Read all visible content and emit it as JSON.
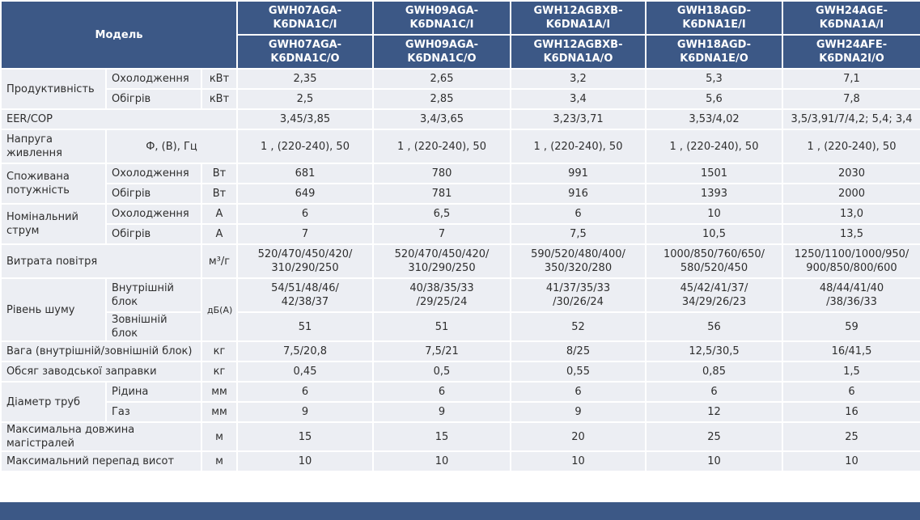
{
  "header": {
    "model_label": "Модель",
    "indoor_models": [
      "GWH07AGA-K6DNA1C/I",
      "GWH09AGA-K6DNA1C/I",
      "GWH12AGBXB-K6DNA1A/I",
      "GWH18AGD-K6DNA1E/I",
      "GWH24AGE-K6DNA1A/I"
    ],
    "outdoor_models": [
      "GWH07AGA-K6DNA1C/O",
      "GWH09AGA-K6DNA1C/O",
      "GWH12AGBXB-K6DNA1A/O",
      "GWH18AGD-K6DNA1E/O",
      "GWH24AFE-K6DNA2I/O"
    ]
  },
  "rows": [
    {
      "label": "Продуктивність",
      "subs": [
        {
          "label": "Охолодження",
          "unit": "кВт",
          "values": [
            "2,35",
            "2,65",
            "3,2",
            "5,3",
            "7,1"
          ]
        },
        {
          "label": "Обігрів",
          "unit": "кВт",
          "values": [
            "2,5",
            "2,85",
            "3,4",
            "5,6",
            "7,8"
          ]
        }
      ]
    },
    {
      "label": "EER/COP",
      "values": [
        "3,45/3,85",
        "3,4/3,65",
        "3,23/3,71",
        "3,53/4,02",
        "3,5/3,91/7/4,2; 5,4; 3,4"
      ]
    },
    {
      "label": "Напруга живлення",
      "condition": "Ф, (В), Гц",
      "values": [
        "1 , (220-240), 50",
        "1 , (220-240), 50",
        "1 , (220-240), 50",
        "1 , (220-240), 50",
        "1 , (220-240), 50"
      ]
    },
    {
      "label": "Споживана потужність",
      "subs": [
        {
          "label": "Охолодження",
          "unit": "Вт",
          "values": [
            "681",
            "780",
            "991",
            "1501",
            "2030"
          ]
        },
        {
          "label": "Обігрів",
          "unit": "Вт",
          "values": [
            "649",
            "781",
            "916",
            "1393",
            "2000"
          ]
        }
      ]
    },
    {
      "label": "Номінальний струм",
      "subs": [
        {
          "label": "Охолодження",
          "unit": "А",
          "values": [
            "6",
            "6,5",
            "6",
            "10",
            "13,0"
          ]
        },
        {
          "label": "Обігрів",
          "unit": "А",
          "values": [
            "7",
            "7",
            "7,5",
            "10,5",
            "13,5"
          ]
        }
      ]
    },
    {
      "label": "Витрата повітря",
      "unit": "м³/г",
      "values": [
        "520/470/450/420/\n310/290/250",
        "520/470/450/420/\n310/290/250",
        "590/520/480/400/\n350/320/280",
        "1000/850/760/650/\n580/520/450",
        "1250/1100/1000/950/\n900/850/800/600"
      ]
    },
    {
      "label": "Рівень шуму",
      "unit": "дБ(А)",
      "subs": [
        {
          "label": "Внутрішній блок",
          "values": [
            "54/51/48/46/\n42/38/37",
            "40/38/35/33\n/29/25/24",
            "41/37/35/33\n/30/26/24",
            "45/42/41/37/\n34/29/26/23",
            "48/44/41/40\n/38/36/33"
          ]
        },
        {
          "label": "Зовнішній блок",
          "values": [
            "51",
            "51",
            "52",
            "56",
            "59"
          ]
        }
      ]
    },
    {
      "label": "Вага (внутрішній/зовнішній блок)",
      "unit": "кг",
      "values": [
        "7,5/20,8",
        "7,5/21",
        "8/25",
        "12,5/30,5",
        "16/41,5"
      ]
    },
    {
      "label": "Обсяг заводської заправки",
      "unit": "кг",
      "values": [
        "0,45",
        "0,5",
        "0,55",
        "0,85",
        "1,5"
      ]
    },
    {
      "label": "Діаметр труб",
      "subs": [
        {
          "label": "Рідина",
          "unit": "мм",
          "values": [
            "6",
            "6",
            "6",
            "6",
            "6"
          ]
        },
        {
          "label": "Газ",
          "unit": "мм",
          "values": [
            "9",
            "9",
            "9",
            "12",
            "16"
          ]
        }
      ]
    },
    {
      "label": "Максимальна довжина магістралей",
      "unit": "м",
      "values": [
        "15",
        "15",
        "20",
        "25",
        "25"
      ]
    },
    {
      "label": "Максимальний перепад висот",
      "unit": "м",
      "values": [
        "10",
        "10",
        "10",
        "10",
        "10"
      ]
    }
  ]
}
